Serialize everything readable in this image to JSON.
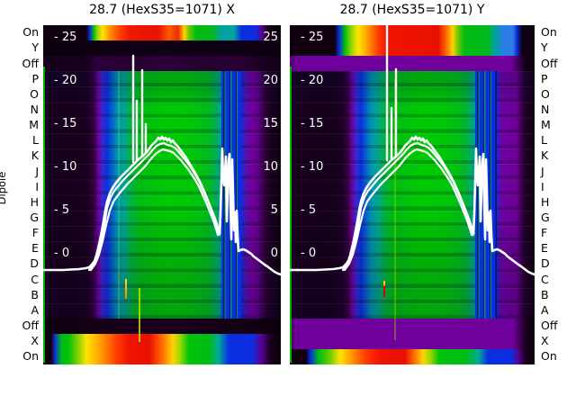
{
  "figure": {
    "background": "#ffffff",
    "colormap": "jet-like (dark purple → blue → cyan → green → yellow → red)"
  },
  "panels": [
    {
      "title": "28.7 (HexS35=1071) X",
      "inner_left_ticks": [
        "- 25",
        "- 20",
        "- 15",
        "- 10",
        "- 5",
        "- 0"
      ],
      "inner_right_ticks": [
        "25",
        "20",
        "15",
        "10",
        "5",
        "0"
      ]
    },
    {
      "title": "28.7 (HexS35=1071) Y",
      "inner_left_ticks": [
        "- 25",
        "- 20",
        "- 15",
        "- 10",
        "- 5",
        "- 0"
      ],
      "inner_right_ticks": []
    }
  ],
  "y_axis": {
    "label": "Dipole",
    "row_labels": [
      "On",
      "Y",
      "Off",
      "P",
      "O",
      "N",
      "M",
      "L",
      "K",
      "J",
      "I",
      "H",
      "G",
      "F",
      "E",
      "D",
      "C",
      "B",
      "A",
      "Off",
      "X",
      "On"
    ]
  },
  "x_axis": {
    "tick_labels": [
      "0",
      "50",
      "100",
      "150",
      "200",
      "250",
      "300"
    ]
  },
  "chart_data": {
    "type": "heatmap",
    "title_left": "28.7 (HexS35=1071) X",
    "title_right": "28.7 (HexS35=1071) Y",
    "x_range": [
      0,
      320
    ],
    "x_ticks": [
      0,
      50,
      100,
      150,
      200,
      250,
      300
    ],
    "inner_scale_ticks": [
      25,
      20,
      15,
      10,
      5,
      0
    ],
    "rows_top_to_bottom": [
      "On",
      "Y",
      "Off",
      "P",
      "O",
      "N",
      "M",
      "L",
      "K",
      "J",
      "I",
      "H",
      "G",
      "F",
      "E",
      "D",
      "C",
      "B",
      "A",
      "Off",
      "X",
      "On"
    ],
    "row_content": {
      "panel_X": {
        "On_top": "rainbow band (x≈60-300)",
        "Y": "dark",
        "Off_top": "dim purple",
        "P_through_A": "signal heatmap: dark|purple|blue|cyan|green center (x≈70-230)|striped blue-green (x≈245-270)|purple|dark",
        "Off_bottom": "dark",
        "X_and_On_bottom": "rainbow band (x≈15-300), red center near x≈130-160"
      },
      "panel_Y": {
        "On_and_Y_top": "rainbow band, red center near x≈130-190, light-blue patch near x≈290",
        "Off_top": "bright purple full width",
        "P_through_A": "signal heatmap like panel X, shifted ~10 units right",
        "Off_and_X_bottom": "bright purple full width",
        "On_bottom": "rainbow band"
      }
    },
    "overlay_line_units": "inner scale (0-25), baseline ≈ -1.9",
    "overlay_line": {
      "x": [
        0,
        55,
        70,
        80,
        90,
        100,
        110,
        120,
        130,
        140,
        150,
        160,
        170,
        180,
        190,
        200,
        210,
        220,
        230,
        238,
        243,
        248,
        252,
        257,
        262,
        267,
        272,
        280,
        290,
        300,
        310,
        318
      ],
      "y": [
        -1.9,
        -1.9,
        -1.0,
        1.5,
        4.5,
        7.0,
        9.0,
        10.5,
        11.8,
        12.6,
        13.2,
        13.5,
        13.3,
        12.6,
        11.5,
        10.0,
        8.2,
        6.0,
        3.5,
        1.0,
        5.5,
        12.0,
        3.0,
        11.8,
        0.8,
        4.5,
        0.5,
        -0.5,
        -1.2,
        -1.9,
        -2.3,
        -2.5
      ]
    },
    "spikes_panel_X": [
      {
        "x": 121,
        "peak": 22.9
      },
      {
        "x": 126,
        "peak": 17.4
      },
      {
        "x": 134,
        "peak": 21.3
      },
      {
        "x": 139,
        "peak": 15.2
      }
    ],
    "spikes_panel_Y": [
      {
        "x": 123,
        "peak": 26.5,
        "note": "clipped at plot top"
      },
      {
        "x": 129,
        "peak": 18.5
      },
      {
        "x": 135,
        "peak": 21.5
      }
    ],
    "spike_cluster_x": [
      240,
      268
    ],
    "legend": "none",
    "grid": "off"
  }
}
